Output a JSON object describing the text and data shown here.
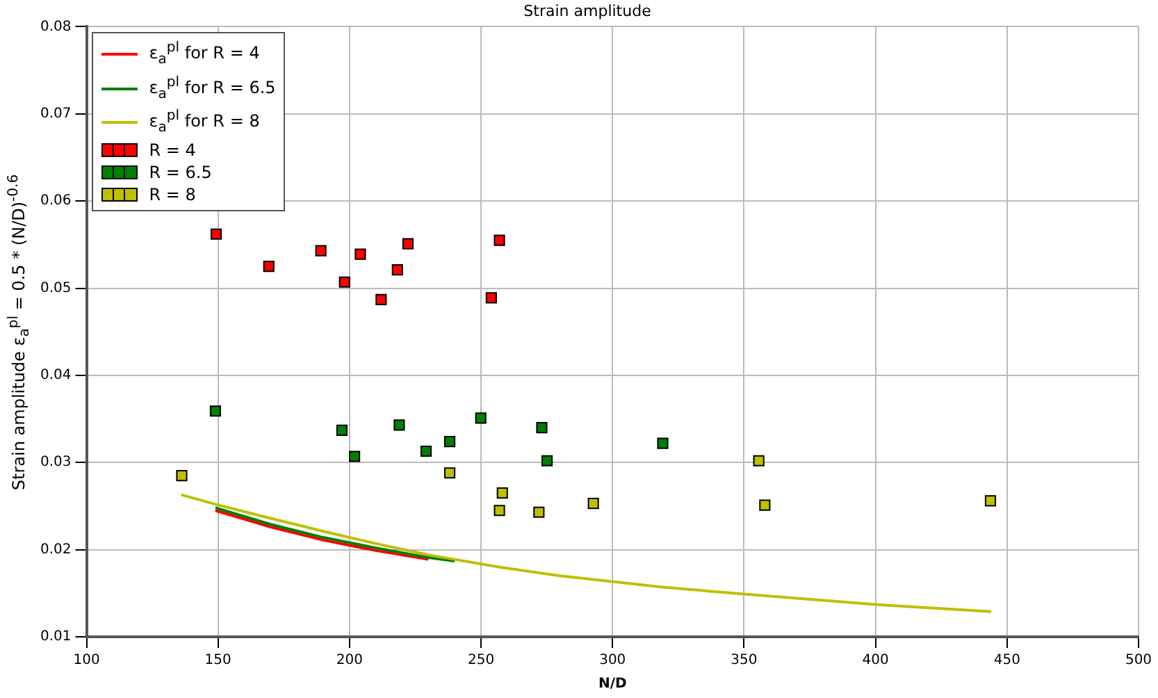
{
  "chart_data": {
    "type": "scatter",
    "title": "Strain amplitude",
    "xlabel": "N/D",
    "ylabel": "Strain amplitude ε$_{a}$$^{pl}$ = 0.5 * (N/D)$^{-0.6}$",
    "xlim": [
      100,
      500
    ],
    "xticks": [
      100,
      150,
      200,
      250,
      300,
      350,
      400,
      450,
      500
    ],
    "ylim": [
      0.01,
      0.08
    ],
    "yticks": [
      0.01,
      0.02,
      0.03,
      0.04,
      0.05,
      0.06,
      0.07,
      0.08
    ],
    "grid": true,
    "legend": "top left",
    "series": [
      {
        "name": "ε$_{a}$$^{pl}$ for R = 4",
        "type": "line",
        "marker": "none",
        "color": "#ff0000",
        "x": [
          149,
          170,
          190,
          210,
          230
        ],
        "values": [
          0.0245,
          0.0226,
          0.0211,
          0.0199,
          0.0189
        ]
      },
      {
        "name": "ε$_{a}$$^{pl}$ for R = 6.5",
        "type": "line",
        "marker": "none",
        "color": "#008000",
        "x": [
          149,
          170,
          190,
          210,
          230,
          240
        ],
        "values": [
          0.0248,
          0.0229,
          0.0214,
          0.0202,
          0.0191,
          0.0187
        ]
      },
      {
        "name": "ε$_{a}$$^{pl}$ for R = 8",
        "type": "line",
        "marker": "none",
        "color": "#bfbf00",
        "x": [
          136,
          149,
          170,
          190,
          210,
          230,
          257,
          280,
          319,
          350,
          400,
          444
        ],
        "values": [
          0.0263,
          0.0252,
          0.0236,
          0.0221,
          0.0207,
          0.0194,
          0.018,
          0.017,
          0.0157,
          0.0149,
          0.0137,
          0.0129
        ]
      },
      {
        "name": "R = 4",
        "type": "scatter",
        "marker": "square",
        "color": "#ff0000",
        "x": [
          149.3,
          169.3,
          189.1,
          198.1,
          204.1,
          212.0,
          218.2,
          222.2,
          253.9,
          257.0
        ],
        "values": [
          0.0562,
          0.0525,
          0.0543,
          0.0507,
          0.0539,
          0.0487,
          0.0521,
          0.0551,
          0.0489,
          0.0555
        ]
      },
      {
        "name": "R = 6.5",
        "type": "scatter",
        "marker": "square",
        "color": "#008000",
        "x": [
          149.0,
          197.1,
          201.9,
          218.9,
          229.1,
          238.1,
          249.9,
          273.1,
          275.1,
          319.1
        ],
        "values": [
          0.0359,
          0.0337,
          0.0307,
          0.0343,
          0.0313,
          0.0324,
          0.0351,
          0.034,
          0.0302,
          0.0322
        ]
      },
      {
        "name": "R = 8",
        "type": "scatter",
        "marker": "square",
        "color": "#bfbf00",
        "x": [
          136.2,
          238.1,
          258.1,
          257.0,
          272.0,
          292.7,
          355.6,
          357.9,
          443.7
        ],
        "values": [
          0.0285,
          0.0288,
          0.0265,
          0.0245,
          0.0243,
          0.0253,
          0.0302,
          0.0251,
          0.0256
        ]
      }
    ]
  }
}
